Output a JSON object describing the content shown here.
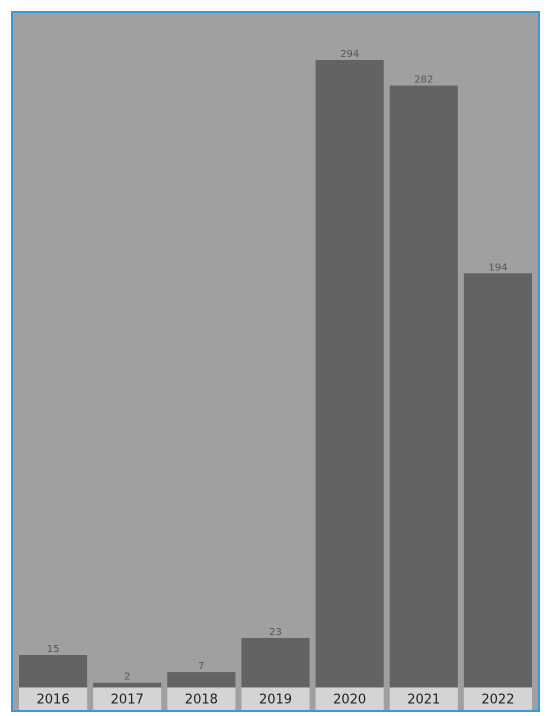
{
  "chart_data": {
    "type": "bar",
    "categories": [
      "2016",
      "2017",
      "2018",
      "2019",
      "2020",
      "2021",
      "2022"
    ],
    "values": [
      15,
      2,
      7,
      23,
      294,
      282,
      194
    ],
    "data_labels": [
      "15",
      "2",
      "7",
      "23",
      "294",
      "282",
      "194"
    ],
    "title": "",
    "xlabel": "",
    "ylabel": "",
    "ylim": [
      0,
      294
    ],
    "grid": false,
    "legend": "none",
    "colors": {
      "bar": "#636363",
      "plot_background": "#a0a0a0",
      "axis_band": "#d4d4d4",
      "frame_border": "#3a9ad6"
    }
  }
}
